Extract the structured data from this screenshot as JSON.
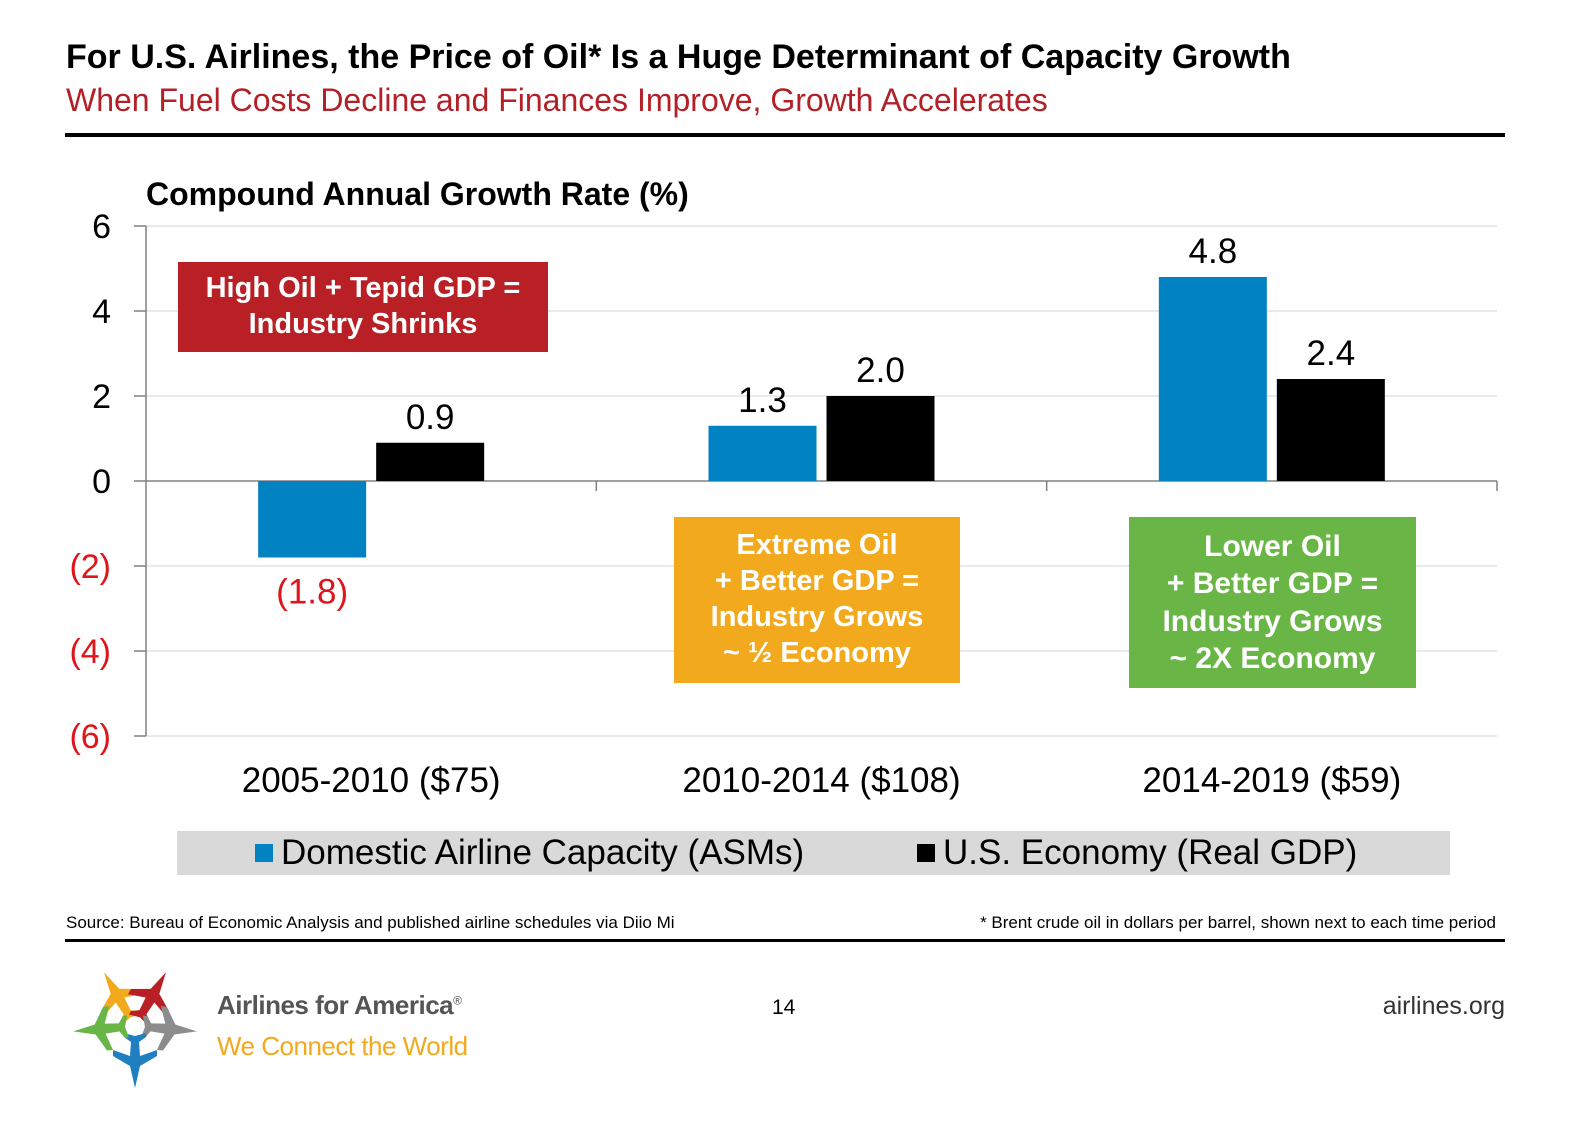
{
  "header": {
    "title": "For U.S. Airlines, the Price of Oil* Is a Huge Determinant of Capacity Growth",
    "subtitle": "When Fuel Costs Decline and Finances Improve, Growth Accelerates"
  },
  "chart_data": {
    "type": "bar",
    "title": "Compound Annual Growth Rate (%)",
    "categories": [
      "2005-2010 ($75)",
      "2010-2014 ($108)",
      "2014-2019 ($59)"
    ],
    "series": [
      {
        "name": "Domestic Airline Capacity (ASMs)",
        "values": [
          -1.8,
          1.3,
          4.8
        ],
        "color": "#0082c3",
        "labels": [
          "(1.8)",
          "1.3",
          "4.8"
        ]
      },
      {
        "name": "U.S. Economy (Real GDP)",
        "values": [
          0.9,
          2.0,
          2.4
        ],
        "color": "#000000",
        "labels": [
          "0.9",
          "2.0",
          "2.4"
        ]
      }
    ],
    "ylim": [
      -6,
      6
    ],
    "yticks": [
      6,
      4,
      2,
      0,
      -2,
      -4,
      -6
    ],
    "ytick_labels": [
      "6",
      "4",
      "2",
      "0",
      "(2)",
      "(4)",
      "(6)"
    ],
    "negative_label_color": "#e0151b",
    "grid": true,
    "legend_position": "bottom"
  },
  "callouts": {
    "red": {
      "lines": [
        "High Oil + Tepid GDP =",
        "Industry Shrinks"
      ],
      "color": "#b82025"
    },
    "orange": {
      "lines": [
        "Extreme Oil",
        "+ Better GDP =",
        "Industry Grows",
        "~ ½ Economy"
      ],
      "color": "#f2a91d"
    },
    "green": {
      "lines": [
        "Lower Oil",
        "+ Better GDP =",
        "Industry Grows",
        "~ 2X Economy"
      ],
      "color": "#69b646"
    }
  },
  "legend": {
    "items": [
      {
        "label": "Domestic Airline Capacity (ASMs)",
        "color": "#0082c3"
      },
      {
        "label": "U.S. Economy (Real GDP)",
        "color": "#000000"
      }
    ]
  },
  "footer": {
    "source": "Source: Bureau of Economic Analysis and published airline schedules via Diio Mi",
    "footnote": "* Brent crude oil in dollars per barrel, shown next to each time period",
    "brand_name": "Airlines for America",
    "brand_mark": "®",
    "brand_tagline": "We Connect the World",
    "page_number": "14",
    "site_url": "airlines.org",
    "logo_icon": "airplanes-star-logo-icon"
  }
}
